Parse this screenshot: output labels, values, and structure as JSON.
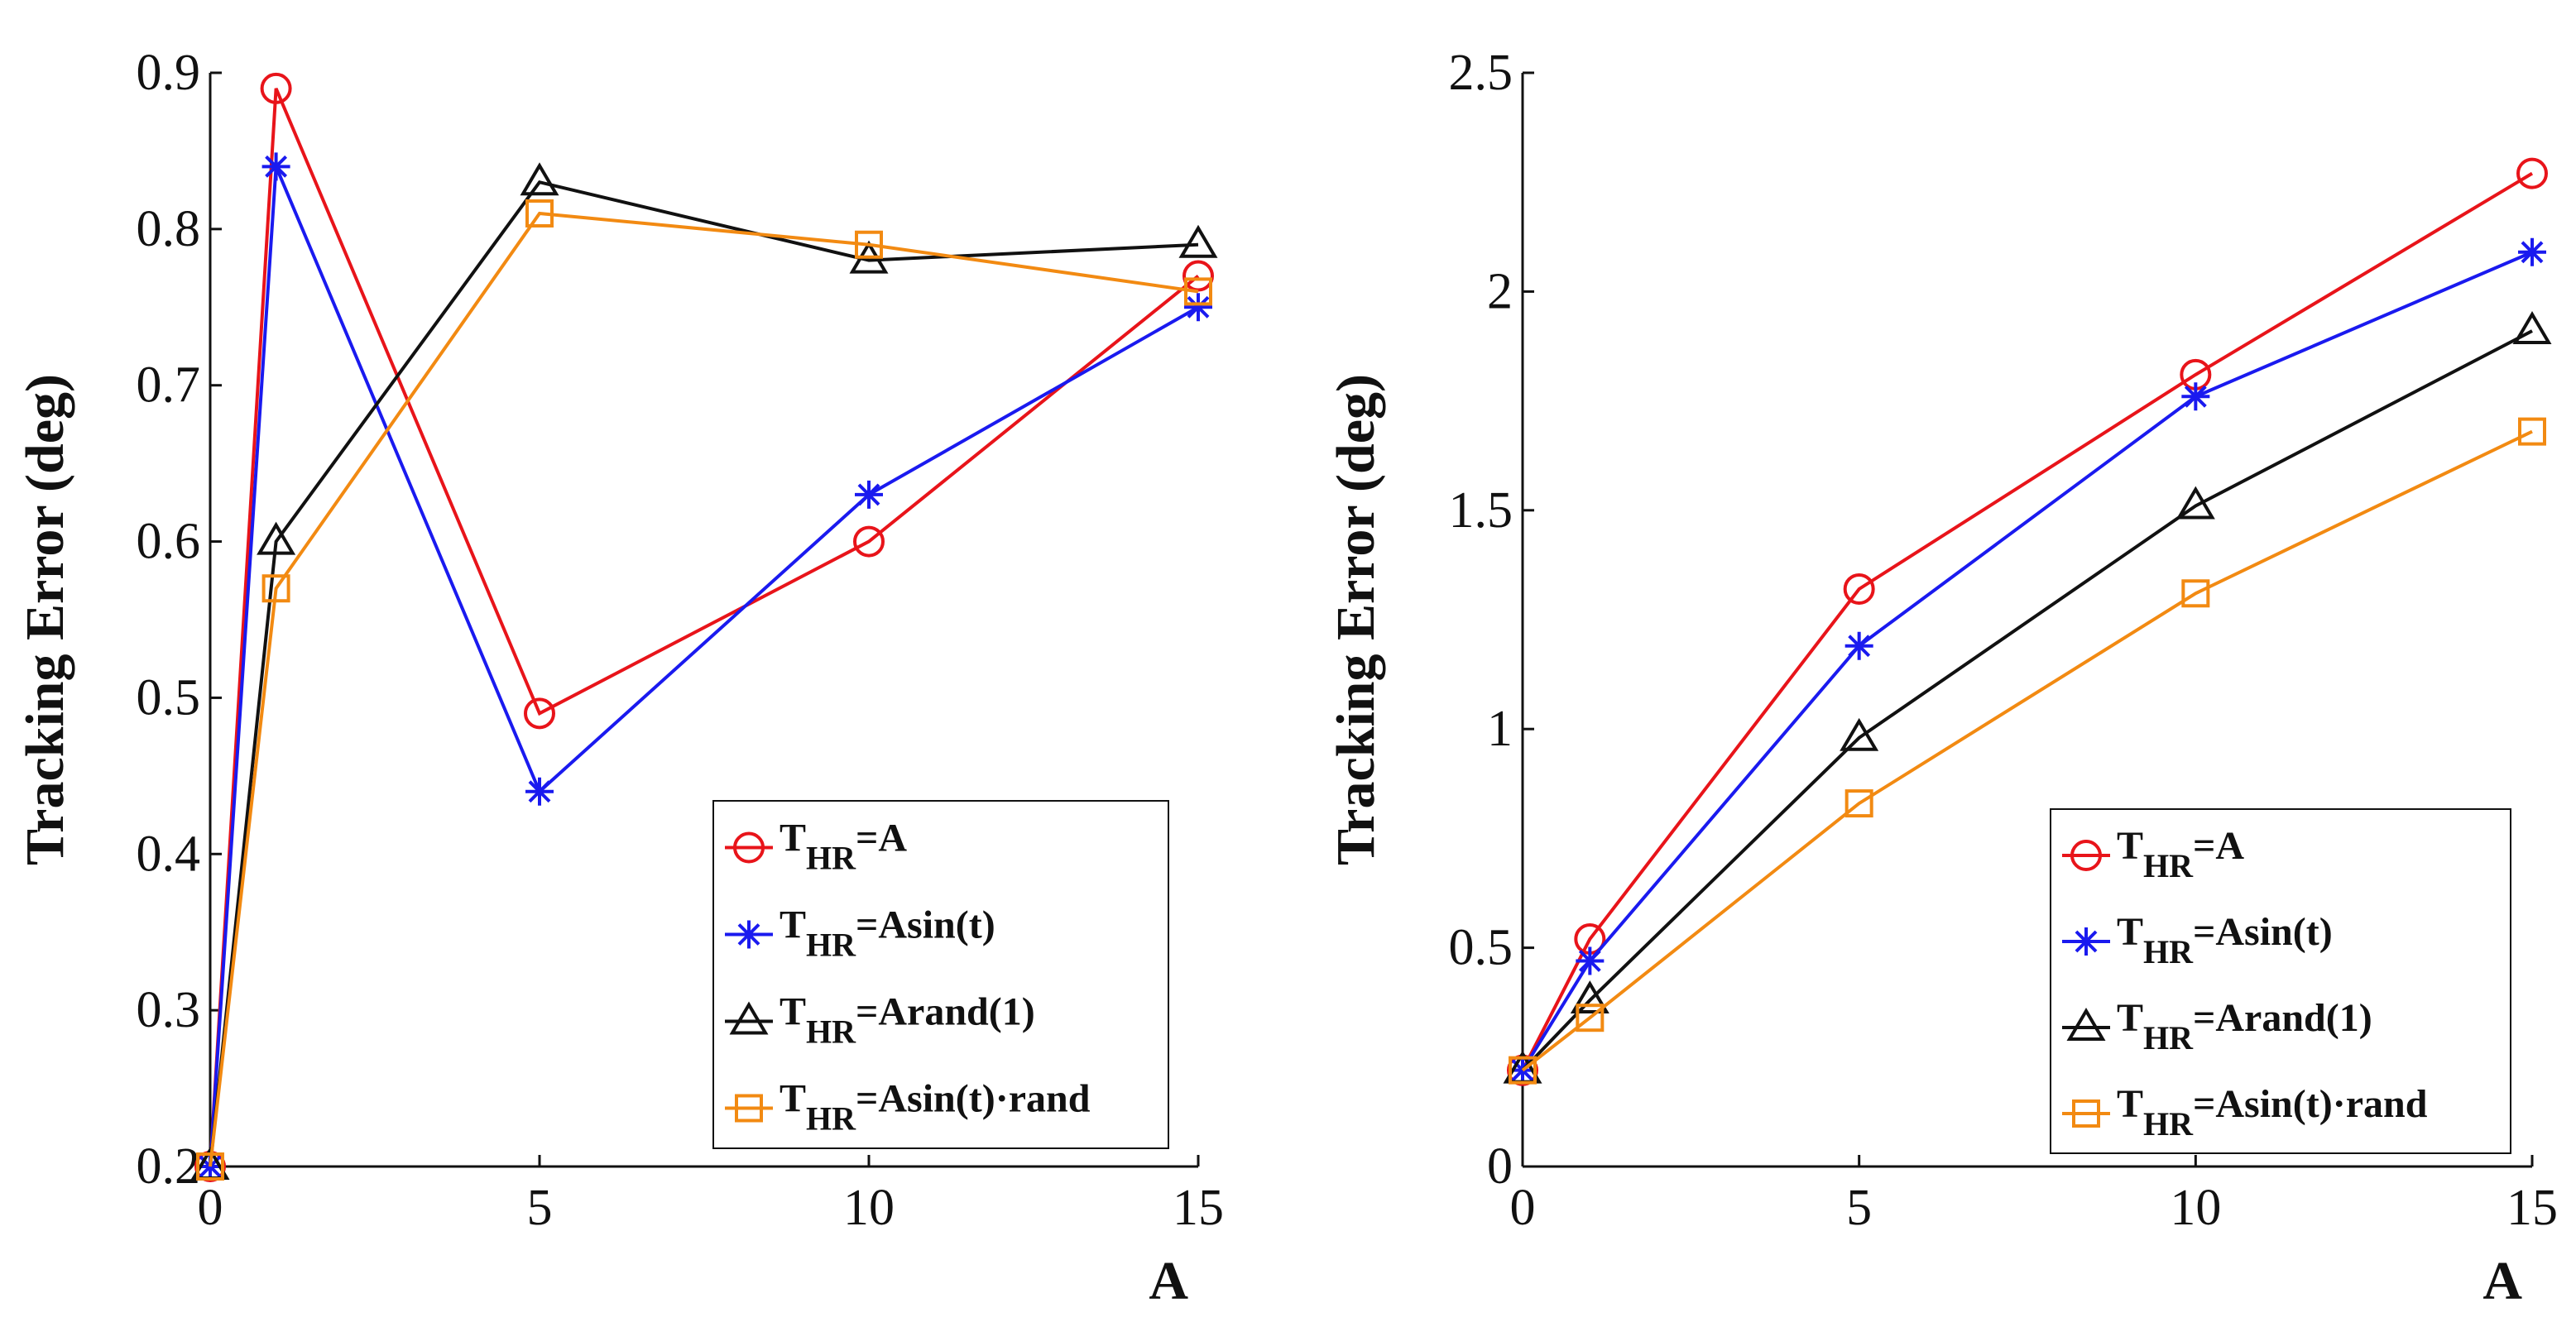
{
  "chart_data": [
    {
      "type": "line",
      "title": "",
      "xlabel": "A",
      "ylabel": "Tracking Error (deg)",
      "xlim": [
        0,
        15
      ],
      "ylim": [
        0.2,
        0.9
      ],
      "xticks": [
        0,
        5,
        10,
        15
      ],
      "xtick_labels": [
        "0",
        "5",
        "10",
        "15"
      ],
      "yticks": [
        0.2,
        0.3,
        0.4,
        0.5,
        0.6,
        0.7,
        0.8,
        0.9
      ],
      "ytick_labels": [
        "0.2",
        "0.3",
        "0.4",
        "0.5",
        "0.6",
        "0.7",
        "0.8",
        "0.9"
      ],
      "grid": false,
      "legend_position": "bottom-right",
      "x": [
        0,
        1,
        5,
        10,
        15
      ],
      "series": [
        {
          "name": "T_HR=A",
          "legend_main": "T",
          "legend_sub": "HR",
          "legend_rest": "=A",
          "color": "#e8141a",
          "marker": "circle",
          "values": [
            0.2,
            0.89,
            0.49,
            0.6,
            0.77
          ]
        },
        {
          "name": "T_HR=Asin(t)",
          "legend_main": "T",
          "legend_sub": "HR",
          "legend_rest": "=Asin(t)",
          "color": "#1a1aef",
          "marker": "asterisk",
          "values": [
            0.2,
            0.84,
            0.44,
            0.63,
            0.75
          ]
        },
        {
          "name": "T_HR=Arand(1)",
          "legend_main": "T",
          "legend_sub": "HR",
          "legend_rest": "=Arand(1)",
          "color": "#111111",
          "marker": "triangle",
          "values": [
            0.2,
            0.6,
            0.83,
            0.78,
            0.79
          ]
        },
        {
          "name": "T_HR=Asin(t)·rand",
          "legend_main": "T",
          "legend_sub": "HR",
          "legend_rest": "=Asin(t)·rand",
          "color": "#f28a12",
          "marker": "square",
          "values": [
            0.2,
            0.57,
            0.81,
            0.79,
            0.76
          ]
        }
      ]
    },
    {
      "type": "line",
      "title": "",
      "xlabel": "A",
      "ylabel": "Tracking Error (deg)",
      "xlim": [
        0,
        15
      ],
      "ylim": [
        0,
        2.5
      ],
      "xticks": [
        0,
        5,
        10,
        15
      ],
      "xtick_labels": [
        "0",
        "5",
        "10",
        "15"
      ],
      "yticks": [
        0,
        0.5,
        1,
        1.5,
        2,
        2.5
      ],
      "ytick_labels": [
        "0",
        "0.5",
        "1",
        "1.5",
        "2",
        "2.5"
      ],
      "grid": false,
      "legend_position": "bottom-right",
      "x": [
        0,
        1,
        5,
        10,
        15
      ],
      "series": [
        {
          "name": "T_HR=A",
          "legend_main": "T",
          "legend_sub": "HR",
          "legend_rest": "=A",
          "color": "#e8141a",
          "marker": "circle",
          "values": [
            0.22,
            0.52,
            1.32,
            1.81,
            2.27
          ]
        },
        {
          "name": "T_HR=Asin(t)",
          "legend_main": "T",
          "legend_sub": "HR",
          "legend_rest": "=Asin(t)",
          "color": "#1a1aef",
          "marker": "asterisk",
          "values": [
            0.22,
            0.47,
            1.19,
            1.76,
            2.09
          ]
        },
        {
          "name": "T_HR=Arand(1)",
          "legend_main": "T",
          "legend_sub": "HR",
          "legend_rest": "=Arand(1)",
          "color": "#111111",
          "marker": "triangle",
          "values": [
            0.22,
            0.38,
            0.98,
            1.51,
            1.91
          ]
        },
        {
          "name": "T_HR=Asin(t)·rand",
          "legend_main": "T",
          "legend_sub": "HR",
          "legend_rest": "=Asin(t)·rand",
          "color": "#f28a12",
          "marker": "square",
          "values": [
            0.22,
            0.34,
            0.83,
            1.31,
            1.68
          ]
        }
      ]
    }
  ]
}
